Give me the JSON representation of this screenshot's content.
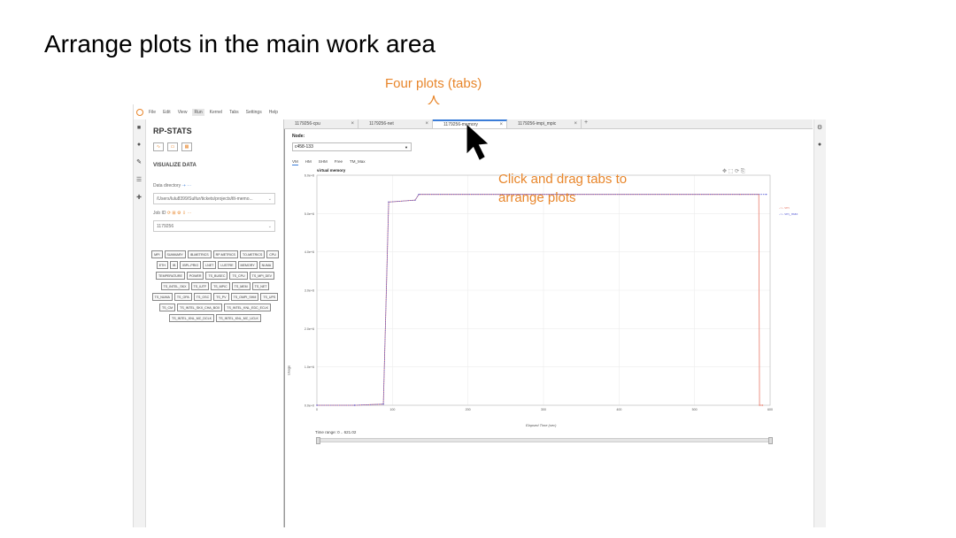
{
  "slide": {
    "title": "Arrange plots in the main work area",
    "annotation_top": "Four plots (tabs)",
    "annotation_drag_line1": "Click and drag tabs to",
    "annotation_drag_line2": "arrange plots",
    "accent_color": "#e8862b"
  },
  "menubar": {
    "items": [
      "File",
      "Edit",
      "View",
      "Run",
      "Kernel",
      "Tabs",
      "Settings",
      "Help"
    ],
    "active_item": "Run"
  },
  "left_rail": {
    "icons": [
      "folder-icon",
      "circle-stop-icon",
      "palette-icon",
      "list-icon",
      "puzzle-icon"
    ]
  },
  "sidebar": {
    "title": "RP-STATS",
    "section_title": "VISUALIZE DATA",
    "data_directory_label": "Data directory",
    "data_directory_value": "/Users/lulu8399/Sulfur/tickets/projects/tlt-memo...",
    "job_id_label": "Job ID",
    "job_id_value": "1179256",
    "metric_buttons": [
      "MPI",
      "SUMMARY",
      "IB-METRICS",
      "RP-METRICS",
      "TO-METRICS",
      "CPU",
      "ETH",
      "IB",
      "IBPL-PRIO",
      "LNET",
      "LUSTRE",
      "MEMORY",
      "NUMA",
      "TEMPERATURE",
      "POWER",
      "TS_BUSEC",
      "TS_CPU",
      "TS_MPI_DEV",
      "TS_INTEL_SKX",
      "TS_IUTF",
      "TS_MPIC",
      "TS_MEM",
      "TS_NET",
      "TS_NUMA",
      "TS_OPA",
      "TS_OSC",
      "TS_PV",
      "TS_OMPI_SHM",
      "TS_UPS",
      "TS_CM",
      "TS_INTEL_SKX_CHA_BOX",
      "TS_INTEL_KNL_EDC_ECLK",
      "TS_INTEL_KNL_MC_DCLK",
      "TS_INTEL_KNL_MC_UCLK"
    ]
  },
  "tabs": [
    {
      "label": "1179256-cpu",
      "active": false
    },
    {
      "label": "1179256-net",
      "active": false
    },
    {
      "label": "1179256-memory",
      "active": true
    },
    {
      "label": "1179256-impi_mpic",
      "active": false
    }
  ],
  "plot_panel": {
    "node_label": "Node:",
    "node_value": "c458-133",
    "subtabs": [
      "VM",
      "HM",
      "SHM",
      "Free",
      "TM_Max"
    ],
    "active_subtab": "VM",
    "plot_title": "virtual memory",
    "toolbar_icons": [
      "pan-icon",
      "box-zoom-icon",
      "reset-icon",
      "save-icon"
    ],
    "time_range_label": "Time range: 0 .. 621.02"
  },
  "chart_data": {
    "type": "line",
    "title": "virtual memory",
    "xlabel": "Elapsed Time (sec)",
    "ylabel": "Usage",
    "xlim": [
      0,
      600
    ],
    "ylim": [
      0,
      6000000
    ],
    "x_ticks": [
      "0",
      "100",
      "200",
      "300",
      "400",
      "500",
      "600"
    ],
    "y_ticks": [
      "0.0e+0",
      "1.0e+6",
      "2.0e+6",
      "3.0e+6",
      "4.0e+6",
      "5.0e+6",
      "6.0e+6"
    ],
    "legend_position": "top-right-outside",
    "grid": true,
    "series": [
      {
        "name": "vm",
        "color": "#e87a6a",
        "x": [
          0,
          50,
          88,
          95,
          130,
          135,
          560,
          585,
          586,
          590
        ],
        "y": [
          0,
          0,
          30000,
          5300000,
          5350000,
          5500000,
          5500000,
          5500000,
          0,
          0
        ]
      },
      {
        "name": "vm_max",
        "color": "#5b5fd6",
        "x": [
          0,
          50,
          88,
          95,
          130,
          135,
          595
        ],
        "y": [
          0,
          0,
          30000,
          5300000,
          5350000,
          5500000,
          5500000
        ]
      }
    ]
  }
}
